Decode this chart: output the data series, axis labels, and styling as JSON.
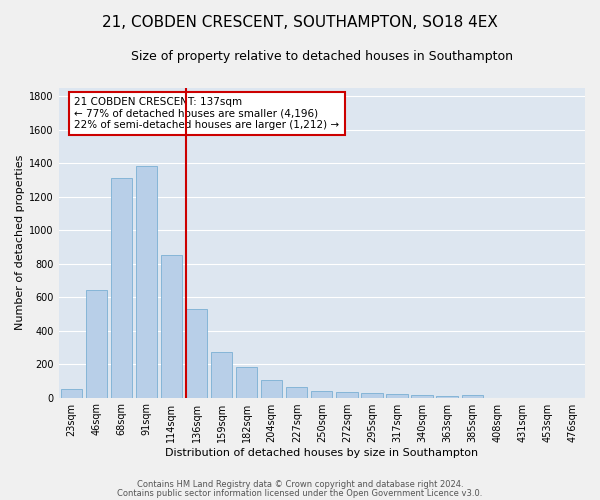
{
  "title": "21, COBDEN CRESCENT, SOUTHAMPTON, SO18 4EX",
  "subtitle": "Size of property relative to detached houses in Southampton",
  "xlabel": "Distribution of detached houses by size in Southampton",
  "ylabel": "Number of detached properties",
  "categories": [
    "23sqm",
    "46sqm",
    "68sqm",
    "91sqm",
    "114sqm",
    "136sqm",
    "159sqm",
    "182sqm",
    "204sqm",
    "227sqm",
    "250sqm",
    "272sqm",
    "295sqm",
    "317sqm",
    "340sqm",
    "363sqm",
    "385sqm",
    "408sqm",
    "431sqm",
    "453sqm",
    "476sqm"
  ],
  "values": [
    50,
    640,
    1310,
    1380,
    850,
    530,
    275,
    185,
    105,
    65,
    40,
    35,
    30,
    20,
    15,
    10,
    15,
    0,
    0,
    0,
    0
  ],
  "bar_color": "#b8cfe8",
  "bar_edge_color": "#7bafd4",
  "vline_color": "#cc0000",
  "annotation_text": "21 COBDEN CRESCENT: 137sqm\n← 77% of detached houses are smaller (4,196)\n22% of semi-detached houses are larger (1,212) →",
  "annotation_box_color": "#cc0000",
  "annotation_text_color": "#000000",
  "ylim": [
    0,
    1850
  ],
  "yticks": [
    0,
    200,
    400,
    600,
    800,
    1000,
    1200,
    1400,
    1600,
    1800
  ],
  "background_color": "#dde6f0",
  "grid_color": "#ffffff",
  "fig_background": "#f0f0f0",
  "footer1": "Contains HM Land Registry data © Crown copyright and database right 2024.",
  "footer2": "Contains public sector information licensed under the Open Government Licence v3.0.",
  "title_fontsize": 11,
  "subtitle_fontsize": 9,
  "ylabel_fontsize": 8,
  "xlabel_fontsize": 8,
  "tick_fontsize": 7,
  "annotation_fontsize": 7.5,
  "footer_fontsize": 6
}
